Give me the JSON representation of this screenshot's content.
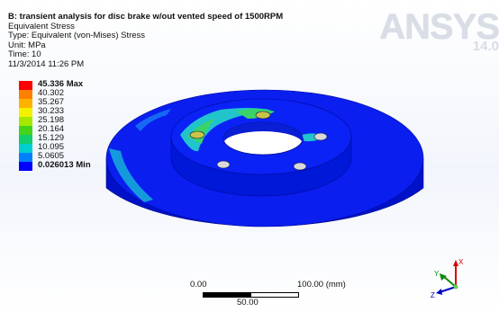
{
  "header": {
    "title": "B: transient analysis for disc brake  w/out vented speed of 1500RPM",
    "result": "Equivalent Stress",
    "type": "Type: Equivalent (von-Mises) Stress",
    "unit": "Unit: MPa",
    "time": "Time: 10",
    "date": "11/3/2014 11:26 PM"
  },
  "logo": {
    "text": "ANSYS",
    "version": "14.0"
  },
  "legend": {
    "entries": [
      {
        "label": "45.336 Max",
        "color": "#ff0000"
      },
      {
        "label": "40.302",
        "color": "#ff7f00"
      },
      {
        "label": "35.267",
        "color": "#ffb300"
      },
      {
        "label": "30.233",
        "color": "#f2f200"
      },
      {
        "label": "25.198",
        "color": "#a5e800"
      },
      {
        "label": "20.164",
        "color": "#45d41a"
      },
      {
        "label": "15.129",
        "color": "#13ce6d"
      },
      {
        "label": "10.095",
        "color": "#00cfcf"
      },
      {
        "label": "5.0605",
        "color": "#0080ff"
      },
      {
        "label": "0.026013 Min",
        "color": "#0000ff"
      }
    ]
  },
  "scale": {
    "left": "0.00",
    "right": "100.00 (mm)",
    "mid": "50.00"
  },
  "triad": {
    "x": "X",
    "y": "Y",
    "z": "Z"
  }
}
